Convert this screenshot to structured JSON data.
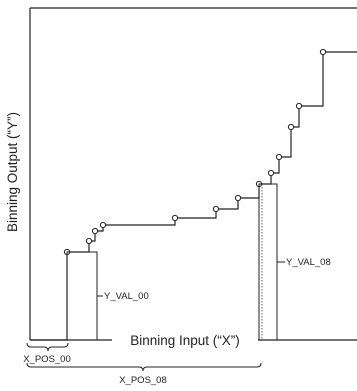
{
  "axes": {
    "x_title": "Binning Input (“X”)",
    "y_title": "Binning Output (“Y”)"
  },
  "labels": {
    "x_pos_00": "X_POS_00",
    "x_pos_08": "X_POS_08",
    "y_val_00": "Y_VAL_00",
    "y_val_08": "Y_VAL_08"
  }
}
